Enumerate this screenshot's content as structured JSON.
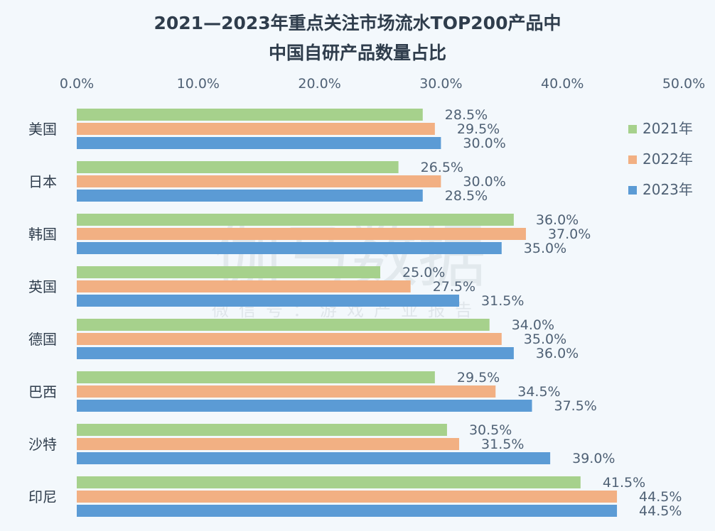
{
  "chart_data": {
    "type": "bar",
    "orientation": "horizontal",
    "title": "2021—2023年重点关注市场流水TOP200产品中",
    "subtitle": "中国自研产品数量占比",
    "categories": [
      "美国",
      "日本",
      "韩国",
      "英国",
      "德国",
      "巴西",
      "沙特",
      "印尼"
    ],
    "series": [
      {
        "name": "2021年",
        "color": "#a6d18c",
        "values": [
          28.5,
          26.5,
          36.0,
          25.0,
          34.0,
          29.5,
          30.5,
          41.5
        ]
      },
      {
        "name": "2022年",
        "color": "#f2b083",
        "values": [
          29.5,
          30.0,
          37.0,
          27.5,
          35.0,
          34.5,
          31.5,
          44.5
        ]
      },
      {
        "name": "2023年",
        "color": "#5b9bd5",
        "values": [
          30.0,
          28.5,
          35.0,
          31.5,
          36.0,
          37.5,
          39.0,
          44.5
        ]
      }
    ],
    "xlim": [
      0,
      50
    ],
    "xticks": [
      "0.0%",
      "10.0%",
      "20.0%",
      "30.0%",
      "40.0%",
      "50.0%"
    ],
    "value_suffix": "%",
    "legend_position": "right",
    "grid": false,
    "watermark": {
      "main": "伽马数据",
      "sub": "微信号：游戏产业报告"
    }
  }
}
